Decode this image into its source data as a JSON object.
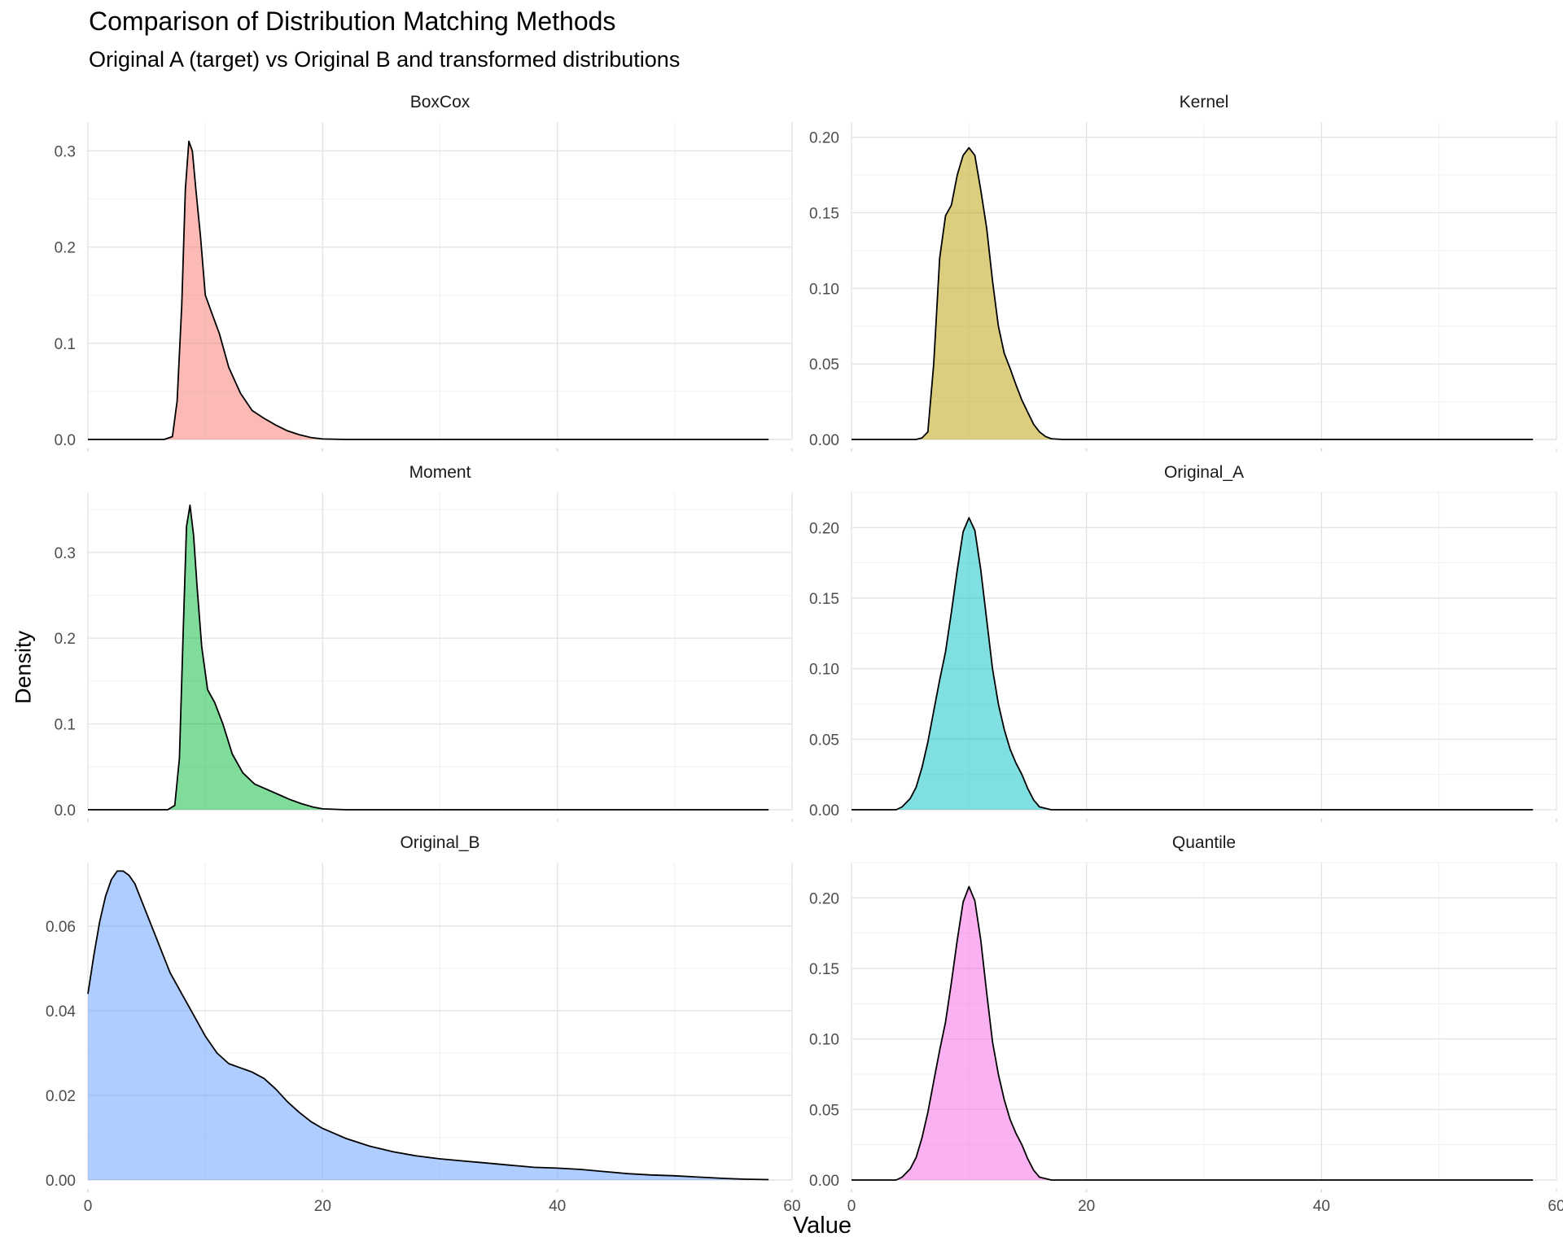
{
  "chart_data": {
    "type": "area",
    "title": "Comparison of Distribution Matching Methods",
    "subtitle": "Original A (target) vs Original B and transformed distributions",
    "xlabel": "Value",
    "ylabel": "Density",
    "xlim": [
      0,
      60
    ],
    "x_ticks": [
      "0",
      "20",
      "40",
      "60"
    ],
    "grid": true,
    "facets": [
      {
        "name": "BoxCox",
        "color": "#F8766D",
        "ylim": [
          0,
          0.33
        ],
        "y_ticks": [
          0,
          0.1,
          0.2,
          0.3
        ],
        "y_tick_labels": [
          "0.0",
          "0.1",
          "0.2",
          "0.3"
        ],
        "x": [
          0,
          6.5,
          7.2,
          7.6,
          8.0,
          8.3,
          8.6,
          8.9,
          9.2,
          9.6,
          10.0,
          10.6,
          11.2,
          12.0,
          13.0,
          14.0,
          15.0,
          16.0,
          17.0,
          18.0,
          19.0,
          20.0,
          22.0,
          30.0,
          58.0
        ],
        "y": [
          0,
          0,
          0.003,
          0.04,
          0.14,
          0.26,
          0.31,
          0.3,
          0.26,
          0.21,
          0.15,
          0.13,
          0.11,
          0.075,
          0.048,
          0.03,
          0.022,
          0.015,
          0.009,
          0.005,
          0.002,
          0.0005,
          0,
          0,
          0
        ]
      },
      {
        "name": "Kernel",
        "color": "#B79F00",
        "ylim": [
          0,
          0.21
        ],
        "y_ticks": [
          0,
          0.05,
          0.1,
          0.15,
          0.2
        ],
        "y_tick_labels": [
          "0.00",
          "0.05",
          "0.10",
          "0.15",
          "0.20"
        ],
        "x": [
          0,
          5.5,
          6.0,
          6.5,
          7.0,
          7.5,
          8.0,
          8.5,
          9.0,
          9.5,
          10.0,
          10.5,
          11.0,
          11.5,
          12.0,
          12.5,
          13.0,
          13.5,
          14.0,
          14.5,
          15.0,
          15.5,
          16.0,
          16.5,
          17.0,
          18.0,
          58.0
        ],
        "y": [
          0,
          0,
          0.001,
          0.005,
          0.05,
          0.12,
          0.148,
          0.155,
          0.175,
          0.188,
          0.193,
          0.188,
          0.165,
          0.14,
          0.105,
          0.075,
          0.057,
          0.047,
          0.036,
          0.026,
          0.018,
          0.01,
          0.005,
          0.002,
          0.0005,
          0,
          0
        ]
      },
      {
        "name": "Moment",
        "color": "#00BA38",
        "ylim": [
          0,
          0.37
        ],
        "y_ticks": [
          0,
          0.1,
          0.2,
          0.3
        ],
        "y_tick_labels": [
          "0.0",
          "0.1",
          "0.2",
          "0.3"
        ],
        "x": [
          0,
          6.8,
          7.4,
          7.8,
          8.1,
          8.4,
          8.7,
          9.0,
          9.3,
          9.7,
          10.2,
          10.8,
          11.5,
          12.3,
          13.2,
          14.2,
          15.2,
          16.2,
          17.2,
          18.2,
          19.2,
          20.0,
          22.0,
          58.0
        ],
        "y": [
          0,
          0,
          0.005,
          0.06,
          0.2,
          0.33,
          0.355,
          0.32,
          0.26,
          0.19,
          0.14,
          0.125,
          0.1,
          0.065,
          0.043,
          0.03,
          0.024,
          0.018,
          0.012,
          0.007,
          0.003,
          0.001,
          0,
          0
        ]
      },
      {
        "name": "Original_A",
        "color": "#00BFC4",
        "ylim": [
          0,
          0.225
        ],
        "y_ticks": [
          0,
          0.05,
          0.1,
          0.15,
          0.2
        ],
        "y_tick_labels": [
          "0.00",
          "0.05",
          "0.10",
          "0.15",
          "0.20"
        ],
        "x": [
          0,
          3.8,
          4.3,
          5.0,
          5.5,
          6.0,
          6.5,
          7.0,
          7.5,
          8.0,
          8.5,
          9.0,
          9.5,
          10.0,
          10.5,
          11.0,
          11.5,
          12.0,
          12.5,
          13.0,
          13.5,
          14.0,
          14.5,
          15.0,
          15.5,
          16.0,
          17.0,
          58.0
        ],
        "y": [
          0,
          0,
          0.002,
          0.008,
          0.016,
          0.03,
          0.048,
          0.07,
          0.092,
          0.112,
          0.14,
          0.17,
          0.197,
          0.207,
          0.198,
          0.17,
          0.135,
          0.1,
          0.075,
          0.057,
          0.043,
          0.033,
          0.025,
          0.015,
          0.007,
          0.002,
          0,
          0
        ]
      },
      {
        "name": "Original_B",
        "color": "#619CFF",
        "ylim": [
          0,
          0.075
        ],
        "y_ticks": [
          0,
          0.02,
          0.04,
          0.06
        ],
        "y_tick_labels": [
          "0.00",
          "0.02",
          "0.04",
          "0.06"
        ],
        "x": [
          0,
          0.5,
          1,
          1.5,
          2,
          2.5,
          3,
          3.5,
          4,
          5,
          6,
          7,
          8,
          9,
          10,
          11,
          12,
          13,
          14,
          15,
          16,
          17,
          18,
          19,
          20,
          22,
          24,
          26,
          28,
          30,
          32,
          34,
          36,
          38,
          40,
          42,
          44,
          46,
          48,
          50,
          52,
          54,
          56,
          58
        ],
        "y": [
          0.044,
          0.053,
          0.061,
          0.067,
          0.071,
          0.073,
          0.073,
          0.072,
          0.07,
          0.063,
          0.056,
          0.049,
          0.044,
          0.039,
          0.034,
          0.03,
          0.0275,
          0.0265,
          0.0255,
          0.024,
          0.0215,
          0.0185,
          0.016,
          0.0138,
          0.0122,
          0.0098,
          0.008,
          0.0067,
          0.0057,
          0.005,
          0.0045,
          0.004,
          0.0035,
          0.003,
          0.0028,
          0.0025,
          0.002,
          0.0015,
          0.0012,
          0.001,
          0.0007,
          0.0004,
          0.0002,
          0.0001
        ]
      },
      {
        "name": "Quantile",
        "color": "#F564E3",
        "ylim": [
          0,
          0.225
        ],
        "y_ticks": [
          0,
          0.05,
          0.1,
          0.15,
          0.2
        ],
        "y_tick_labels": [
          "0.00",
          "0.05",
          "0.10",
          "0.15",
          "0.20"
        ],
        "x": [
          0,
          3.8,
          4.3,
          5.0,
          5.5,
          6.0,
          6.5,
          7.0,
          7.5,
          8.0,
          8.5,
          9.0,
          9.5,
          10.0,
          10.5,
          11.0,
          11.5,
          12.0,
          12.5,
          13.0,
          13.5,
          14.0,
          14.5,
          15.0,
          15.5,
          16.0,
          17.0,
          58.0
        ],
        "y": [
          0,
          0,
          0.002,
          0.008,
          0.016,
          0.03,
          0.048,
          0.07,
          0.092,
          0.112,
          0.14,
          0.17,
          0.197,
          0.208,
          0.198,
          0.17,
          0.133,
          0.098,
          0.075,
          0.057,
          0.043,
          0.033,
          0.025,
          0.015,
          0.007,
          0.002,
          0,
          0
        ]
      }
    ]
  }
}
